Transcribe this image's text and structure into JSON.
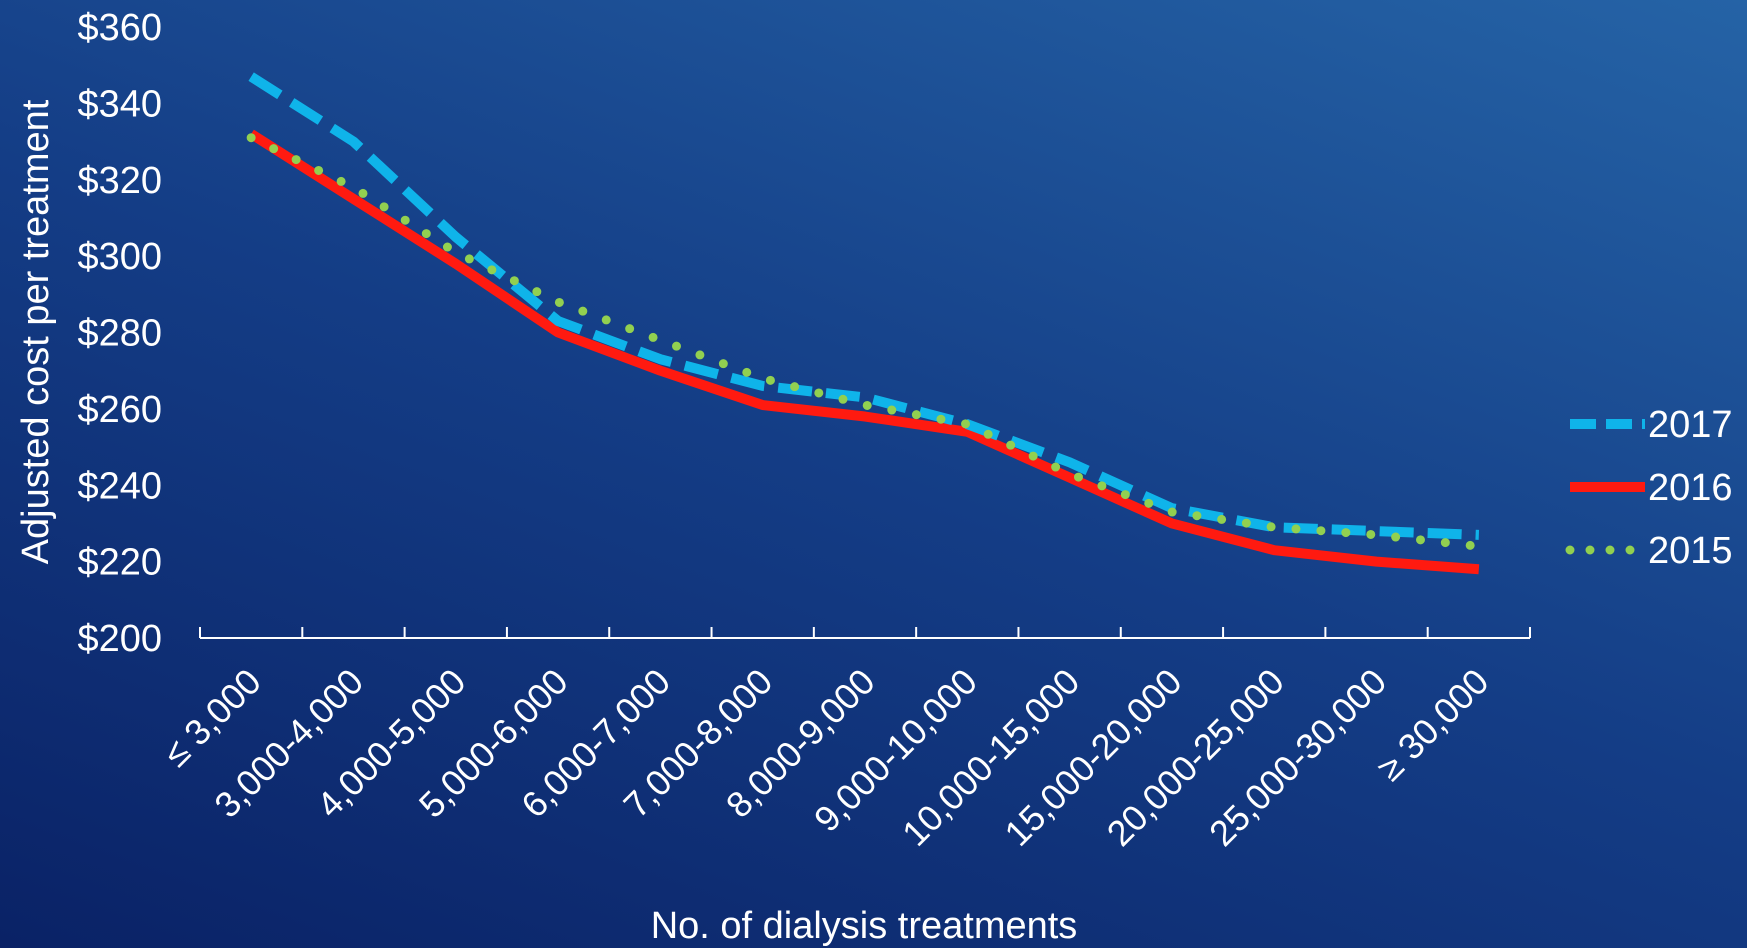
{
  "chart_data": {
    "type": "line",
    "xlabel": "No. of dialysis treatments",
    "ylabel": "Adjusted cost per treatment",
    "ylim": [
      200,
      360
    ],
    "ytick_step": 20,
    "ytick_prefix": "$",
    "categories": [
      "≤ 3,000",
      "3,000-4,000",
      "4,000-5,000",
      "5,000-6,000",
      "6,000-7,000",
      "7,000-8,000",
      "8,000-9,000",
      "9,000-10,000",
      "10,000-15,000",
      "15,000-20,000",
      "20,000-25,000",
      "25,000-30,000",
      "≥ 30,000"
    ],
    "series": [
      {
        "name": "2017",
        "values": [
          347,
          330,
          305,
          283,
          273,
          266,
          263,
          256,
          246,
          234,
          229,
          228,
          227
        ],
        "color": "#0fb4ea",
        "style": "dashed"
      },
      {
        "name": "2016",
        "values": [
          332,
          315,
          298,
          280,
          270,
          261,
          258,
          254,
          242,
          230,
          223,
          220,
          218
        ],
        "color": "#ff1a10",
        "style": "solid"
      },
      {
        "name": "2015",
        "values": [
          331,
          318,
          301,
          288,
          278,
          268,
          261,
          256,
          243,
          233,
          229,
          227,
          224
        ],
        "color": "#92d050",
        "style": "dotted"
      }
    ],
    "legend_position": "right",
    "grid": false
  }
}
